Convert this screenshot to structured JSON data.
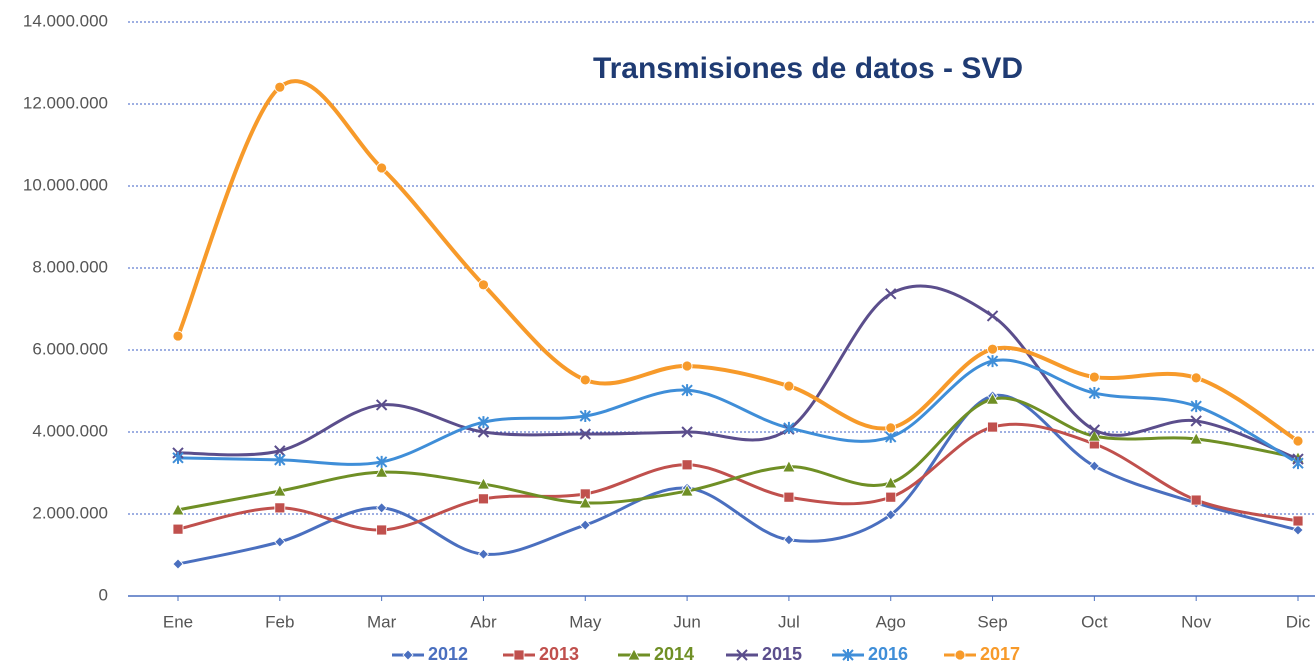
{
  "chart_data": {
    "type": "line",
    "title": "Transmisiones de datos - SVD",
    "categories": [
      "Ene",
      "Feb",
      "Mar",
      "Abr",
      "May",
      "Jun",
      "Jul",
      "Ago",
      "Sep",
      "Oct",
      "Nov",
      "Dic"
    ],
    "series": [
      {
        "name": "2012",
        "color": "#4a6fbf",
        "marker": "diamond",
        "values": [
          780000,
          1320000,
          2150000,
          1020000,
          1730000,
          2630000,
          1370000,
          1980000,
          4880000,
          3170000,
          2270000,
          1610000
        ]
      },
      {
        "name": "2013",
        "color": "#c0504d",
        "marker": "square",
        "values": [
          1630000,
          2150000,
          1610000,
          2370000,
          2490000,
          3200000,
          2410000,
          2410000,
          4120000,
          3710000,
          2340000,
          1830000
        ]
      },
      {
        "name": "2014",
        "color": "#6f8f25",
        "marker": "triangle",
        "values": [
          2100000,
          2560000,
          3020000,
          2730000,
          2270000,
          2560000,
          3150000,
          2760000,
          4800000,
          3900000,
          3830000,
          3370000
        ]
      },
      {
        "name": "2015",
        "color": "#5b4e8c",
        "marker": "x",
        "values": [
          3490000,
          3540000,
          4660000,
          4000000,
          3950000,
          4000000,
          4070000,
          7370000,
          6830000,
          4050000,
          4270000,
          3340000
        ]
      },
      {
        "name": "2016",
        "color": "#3f8ed8",
        "marker": "star",
        "values": [
          3370000,
          3320000,
          3270000,
          4240000,
          4390000,
          5020000,
          4100000,
          3880000,
          5730000,
          4950000,
          4630000,
          3240000
        ]
      },
      {
        "name": "2017",
        "color": "#f79a2a",
        "marker": "circle",
        "values": [
          6340000,
          12410000,
          10440000,
          7590000,
          5270000,
          5610000,
          5120000,
          4100000,
          6020000,
          5340000,
          5320000,
          3780000
        ]
      }
    ],
    "ylim": [
      0,
      14000000
    ],
    "yticks": [
      0,
      {
        "value": 2000000,
        "label": "2.000.000"
      },
      {
        "value": 4000000,
        "label": "4.000.000"
      },
      {
        "value": 6000000,
        "label": "6.000.000"
      },
      {
        "value": 8000000,
        "label": "8.000.000"
      },
      {
        "value": 10000000,
        "label": "10.000.000"
      },
      {
        "value": 12000000,
        "label": "12.000.000"
      },
      {
        "value": 14000000,
        "label": "14.000.000"
      }
    ],
    "grid": true,
    "smooth": true,
    "legend": "bottom"
  }
}
